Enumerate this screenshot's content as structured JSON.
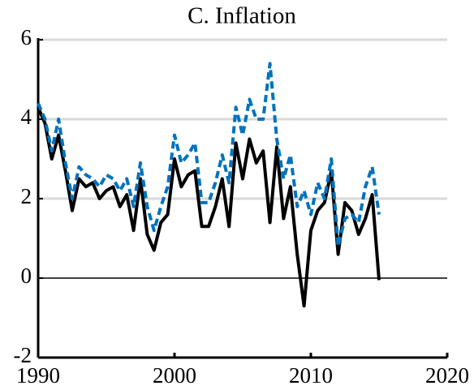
{
  "chart_data": {
    "type": "line",
    "title": "C. Inflation",
    "x": [
      1990,
      1990.5,
      1991,
      1991.5,
      1992,
      1992.5,
      1993,
      1993.5,
      1994,
      1994.5,
      1995,
      1995.5,
      1996,
      1996.5,
      1997,
      1997.5,
      1998,
      1998.5,
      1999,
      1999.5,
      2000,
      2000.5,
      2001,
      2001.5,
      2002,
      2002.5,
      2003,
      2003.5,
      2004,
      2004.5,
      2005,
      2005.5,
      2006,
      2006.5,
      2007,
      2007.5,
      2008,
      2008.5,
      2009,
      2009.5,
      2010,
      2010.5,
      2011,
      2011.5,
      2012,
      2012.5,
      2013,
      2013.5,
      2014,
      2014.5,
      2015
    ],
    "series": [
      {
        "color": "#000000",
        "dash": false,
        "values": [
          4.3,
          3.9,
          3.0,
          3.6,
          2.7,
          1.7,
          2.5,
          2.3,
          2.4,
          2.0,
          2.2,
          2.3,
          1.8,
          2.1,
          1.2,
          2.5,
          1.1,
          0.7,
          1.4,
          1.6,
          3.0,
          2.3,
          2.6,
          2.7,
          1.3,
          1.3,
          1.8,
          2.5,
          1.3,
          3.4,
          2.5,
          3.5,
          2.9,
          3.2,
          1.4,
          3.3,
          1.5,
          2.3,
          0.6,
          -0.7,
          1.2,
          1.7,
          1.9,
          2.7,
          0.6,
          1.9,
          1.7,
          1.1,
          1.5,
          2.1,
          -0.05
        ]
      },
      {
        "color": "#0072bd",
        "dash": true,
        "values": [
          4.4,
          4.0,
          3.2,
          4.0,
          2.9,
          2.0,
          2.8,
          2.6,
          2.5,
          2.3,
          2.6,
          2.5,
          2.2,
          2.5,
          1.8,
          2.9,
          1.8,
          1.2,
          1.8,
          2.3,
          3.6,
          2.9,
          3.1,
          3.4,
          1.9,
          1.9,
          2.4,
          3.1,
          2.4,
          4.3,
          3.6,
          4.5,
          4.0,
          4.0,
          5.4,
          3.5,
          2.5,
          3.1,
          1.8,
          2.2,
          1.6,
          2.4,
          2.0,
          3.0,
          0.8,
          1.5,
          1.6,
          1.4,
          2.3,
          2.8,
          1.6
        ]
      }
    ],
    "xlim": [
      1990,
      2020
    ],
    "xticks": [
      1990,
      2000,
      2010,
      2020
    ],
    "ylim": [
      -2,
      6
    ],
    "yticks": [
      -2,
      0,
      2,
      4,
      6
    ],
    "grid": true,
    "zero_line": true
  }
}
